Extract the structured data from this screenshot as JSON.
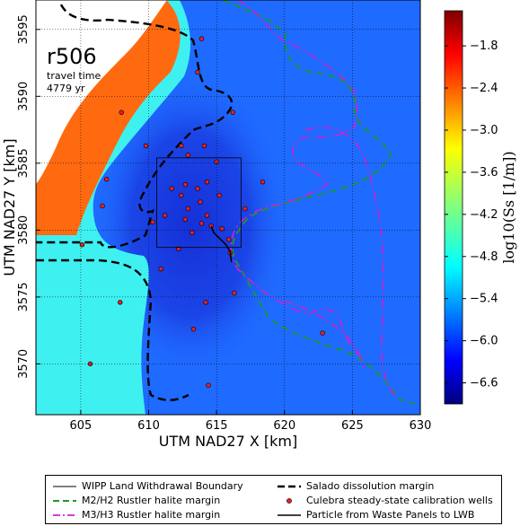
{
  "chart_data": {
    "type": "heatmap",
    "title": "r506",
    "annotation_lines": [
      "travel time",
      "4779 yr"
    ],
    "xlabel": "UTM NAD27 X [km]",
    "ylabel": "UTM NAD27 Y [km]",
    "xlim": [
      601.7,
      630
    ],
    "ylim": [
      3566.2,
      3597.2
    ],
    "xticks": [
      605,
      610,
      615,
      620,
      625,
      630
    ],
    "yticks": [
      3570,
      3575,
      3580,
      3585,
      3590,
      3595
    ],
    "grid": true,
    "colorbar": {
      "label": "log10(Ss [1/m])",
      "range": [
        -6.9,
        -1.3
      ],
      "ticks": [
        -1.8,
        -2.4,
        -3.0,
        -3.6,
        -4.2,
        -4.8,
        -5.4,
        -6.0,
        -6.6
      ],
      "colormap": "jet"
    },
    "legend_placement": "below",
    "colors": {
      "orange_zone": "#ff6a10",
      "cyan_zone": "#3ff0f0",
      "background_field": "#1f6aff",
      "low_field": "#1b3fe0",
      "no_data": "#ffffff",
      "salado": "#000000",
      "m2h2": "#1a9a2a",
      "m3h3": "#d020d0",
      "wells": "#e82020"
    },
    "lwb_box": {
      "x": [
        610.6,
        616.8
      ],
      "y": [
        3578.7,
        3585.4
      ]
    },
    "wells": [
      [
        613.9,
        3594.3
      ],
      [
        613.6,
        3591.8
      ],
      [
        608.0,
        3588.8
      ],
      [
        616.2,
        3588.8
      ],
      [
        612.4,
        3586.3
      ],
      [
        609.8,
        3586.3
      ],
      [
        614.1,
        3586.3
      ],
      [
        612.9,
        3585.6
      ],
      [
        615.0,
        3585.1
      ],
      [
        606.9,
        3583.8
      ],
      [
        612.7,
        3583.4
      ],
      [
        614.3,
        3583.6
      ],
      [
        618.4,
        3583.6
      ],
      [
        611.7,
        3583.1
      ],
      [
        613.6,
        3583.1
      ],
      [
        612.4,
        3582.6
      ],
      [
        613.8,
        3582.1
      ],
      [
        615.2,
        3582.6
      ],
      [
        606.6,
        3581.8
      ],
      [
        611.2,
        3581.1
      ],
      [
        612.9,
        3581.6
      ],
      [
        614.3,
        3581.1
      ],
      [
        617.1,
        3581.6
      ],
      [
        612.7,
        3580.8
      ],
      [
        613.9,
        3580.5
      ],
      [
        614.6,
        3580.3
      ],
      [
        615.4,
        3580.1
      ],
      [
        613.2,
        3579.8
      ],
      [
        610.3,
        3580.6
      ],
      [
        615.9,
        3579.3
      ],
      [
        612.2,
        3578.6
      ],
      [
        605.1,
        3578.9
      ],
      [
        616.0,
        3578.3
      ],
      [
        610.9,
        3577.1
      ],
      [
        616.3,
        3575.3
      ],
      [
        607.9,
        3574.6
      ],
      [
        614.2,
        3574.6
      ],
      [
        613.3,
        3572.6
      ],
      [
        622.8,
        3572.3
      ],
      [
        605.7,
        3570.0
      ],
      [
        614.4,
        3568.4
      ]
    ],
    "particle_path": [
      [
        614.6,
        3580.3
      ],
      [
        614.8,
        3579.8
      ],
      [
        615.2,
        3579.4
      ],
      [
        615.7,
        3578.9
      ],
      [
        616.0,
        3578.4
      ],
      [
        616.1,
        3577.6
      ]
    ]
  },
  "legend": {
    "items": [
      {
        "label": "WIPP Land Withdrawal Boundary",
        "style": "thin-solid",
        "color": "#000000"
      },
      {
        "label": "Salado dissolution margin",
        "style": "thick-dashed",
        "color": "#000000"
      },
      {
        "label": "M2/H2 Rustler halite margin",
        "style": "dashed",
        "color": "#1a9a2a"
      },
      {
        "label": "Culebra steady-state calibration wells",
        "style": "dot",
        "color": "#e82020"
      },
      {
        "label": "M3/H3 Rustler halite margin",
        "style": "dash-dot",
        "color": "#d020d0"
      },
      {
        "label": "Particle from Waste Panels to LWB",
        "style": "solid",
        "color": "#000000"
      }
    ]
  }
}
